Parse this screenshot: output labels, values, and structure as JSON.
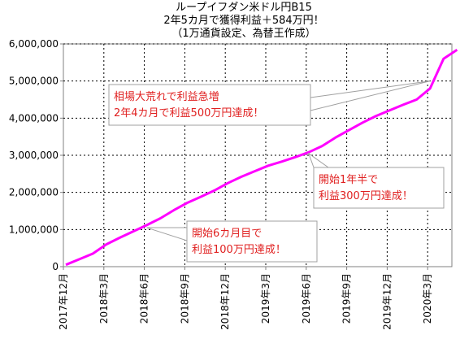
{
  "title_lines": [
    "ループイフダン米ドル円B15",
    "2年5カ月で獲得利益＋584万円！",
    "（1万通貨設定、為替王作成）"
  ],
  "chart_data": {
    "type": "line",
    "title": "ループイフダン米ドル円B15 2年5カ月で獲得利益＋584万円！（1万通貨設定、為替王作成）",
    "xlabel": "",
    "ylabel": "",
    "ylim": [
      0,
      6000000
    ],
    "yticks": [
      "0",
      "1,000,000",
      "2,000,000",
      "3,000,000",
      "4,000,000",
      "5,000,000",
      "6,000,000"
    ],
    "xticks": [
      "2017年12月",
      "2018年3月",
      "2018年6月",
      "2018年9月",
      "2018年12月",
      "2019年3月",
      "2019年6月",
      "2019年9月",
      "2019年12月",
      "2020年3月"
    ],
    "grid": true,
    "line_color": "#ff00ff",
    "series": [
      {
        "x": [
          "2017-12",
          "2018-01",
          "2018-02",
          "2018-03",
          "2018-04",
          "2018-05",
          "2018-06",
          "2018-07",
          "2018-08",
          "2018-09",
          "2018-10",
          "2018-11",
          "2018-12",
          "2019-01",
          "2019-02",
          "2019-03",
          "2019-04",
          "2019-05",
          "2019-06",
          "2019-07",
          "2019-08",
          "2019-09",
          "2019-10",
          "2019-11",
          "2019-12",
          "2020-01",
          "2020-02",
          "2020-03",
          "2020-04",
          "2020-05"
        ],
        "values": [
          50000,
          200000,
          350000,
          600000,
          780000,
          950000,
          1120000,
          1300000,
          1520000,
          1720000,
          1880000,
          2050000,
          2250000,
          2420000,
          2570000,
          2720000,
          2830000,
          2950000,
          3080000,
          3250000,
          3480000,
          3680000,
          3880000,
          4060000,
          4210000,
          4360000,
          4500000,
          4800000,
          5600000,
          5840000
        ]
      }
    ],
    "annotations": [
      {
        "lines": [
          "相場大荒れで利益急増",
          "2年4カ月で利益500万円達成！"
        ],
        "x": "2020-03",
        "y": 5000000
      },
      {
        "lines": [
          "開始1年半で",
          "利益300万円達成！"
        ],
        "x": "2019-06",
        "y": 3050000
      },
      {
        "lines": [
          "開始6カ月目で",
          "利益100万円達成！"
        ],
        "x": "2018-06",
        "y": 1050000
      }
    ]
  }
}
